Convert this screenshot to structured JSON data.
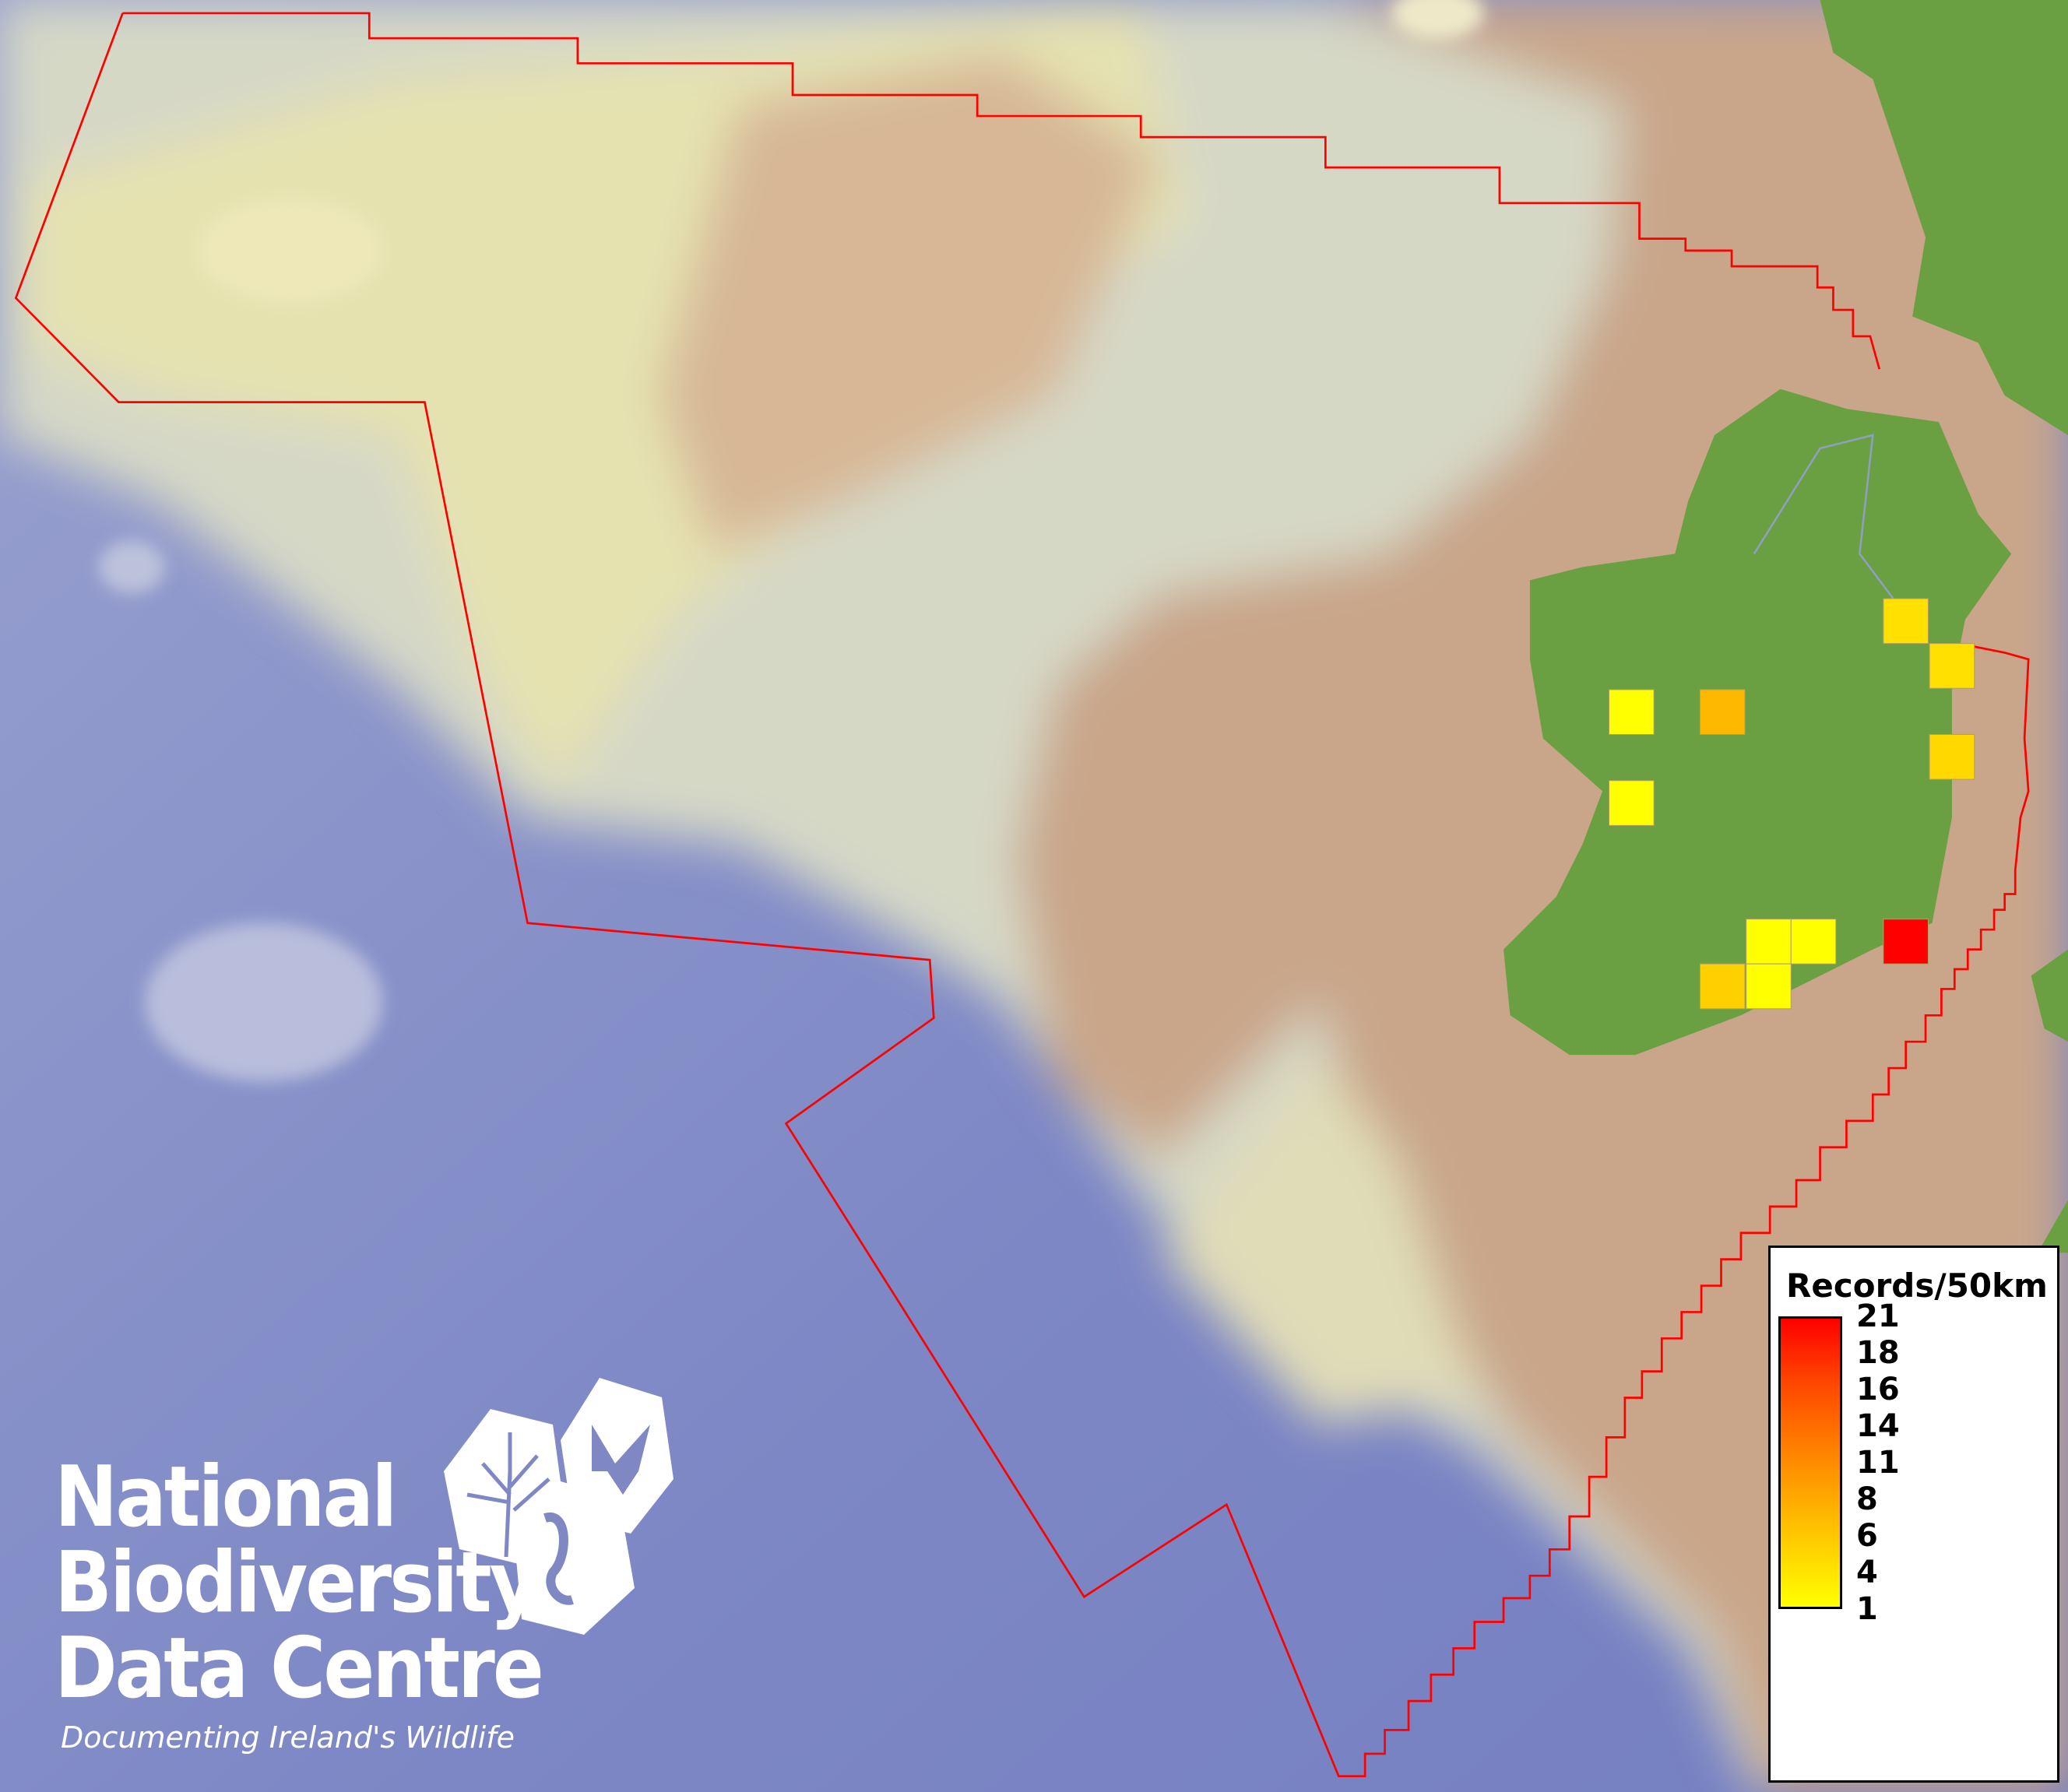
{
  "map": {
    "type": "distribution-grid-map",
    "colors": {
      "ocean": "#7f89c6",
      "shelf": "#c9a68a",
      "slope": "#e3e0b8",
      "land": "#6aa042",
      "boundary": "#ff0000"
    },
    "grid_cells": [
      {
        "value": 2,
        "color": "#ffe000"
      },
      {
        "value": 2,
        "color": "#ffe000"
      },
      {
        "value": 1,
        "color": "#ffff00"
      },
      {
        "value": 7,
        "color": "#ffb800"
      },
      {
        "value": 3,
        "color": "#ffd800"
      },
      {
        "value": 1,
        "color": "#ffff00"
      },
      {
        "value": 1,
        "color": "#ffff00"
      },
      {
        "value": 1,
        "color": "#ffff00"
      },
      {
        "value": 21,
        "color": "#ff0000"
      },
      {
        "value": 4,
        "color": "#ffd000"
      },
      {
        "value": 1,
        "color": "#ffff00"
      }
    ]
  },
  "legend": {
    "title": "Records/50km",
    "ticks": [
      "21",
      "18",
      "16",
      "14",
      "11",
      "8",
      "6",
      "4",
      "1"
    ],
    "color_min": "#ffff00",
    "color_max": "#ff0000"
  },
  "logo": {
    "line1": "National",
    "line2": "Biodiversity",
    "line3": "Data Centre",
    "tagline": "Documenting Ireland's Wildlife",
    "icons": [
      "plant-icon",
      "butterfly-icon",
      "seahorse-icon"
    ]
  }
}
